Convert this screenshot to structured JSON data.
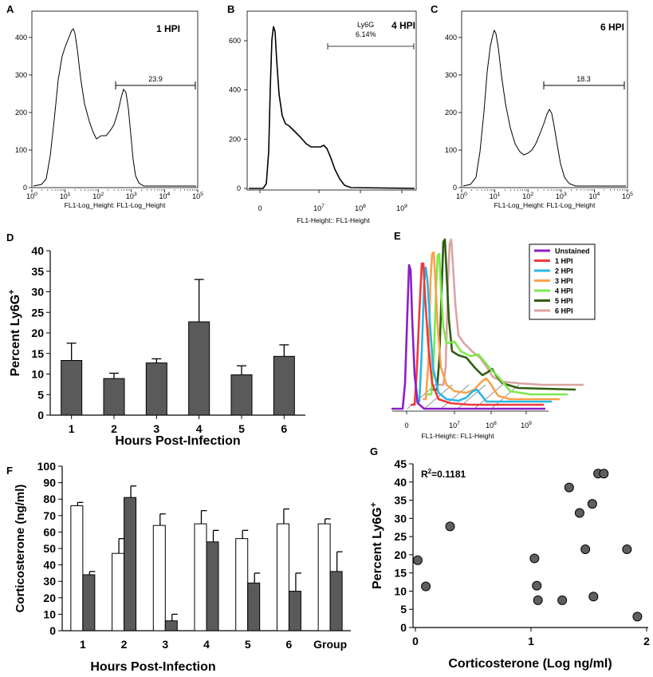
{
  "panels": {
    "A": {
      "letter": "A",
      "title": "1 HPI",
      "gate_value": "23.9",
      "xlabel": "FL1-Log_Height: FL1-Log_Height",
      "x_ticks": [
        "10",
        "10",
        "10",
        "10",
        "10",
        "10"
      ],
      "x_tick_exps": [
        "0",
        "1",
        "2",
        "3",
        "4",
        "5"
      ],
      "y_ticks": [
        "0",
        "100",
        "200",
        "300",
        "400"
      ]
    },
    "B": {
      "letter": "B",
      "title": "4 HPI",
      "gate_label": "Ly6G",
      "gate_value": "6.14%",
      "xlabel": "FL1-Height:: FL1-Height",
      "x_ticks": [
        "0",
        "10",
        "10",
        "10"
      ],
      "x_tick_exps": [
        "",
        "7",
        "8",
        "9"
      ],
      "y_ticks": [
        "0",
        "200",
        "400",
        "600"
      ]
    },
    "C": {
      "letter": "C",
      "title": "6 HPI",
      "gate_value": "18.3",
      "xlabel": "FL1-Log_Height: FL1-Log_Height",
      "x_ticks": [
        "10",
        "10",
        "10",
        "10",
        "10",
        "10"
      ],
      "x_tick_exps": [
        "0",
        "1",
        "2",
        "3",
        "4",
        "5"
      ],
      "y_ticks": [
        "0",
        "100",
        "200",
        "300",
        "400"
      ]
    },
    "D": {
      "letter": "D"
    },
    "E": {
      "letter": "E",
      "xlabel": "FL1-Height:: FL1-Height",
      "x_ticks": [
        "0",
        "10",
        "10",
        "10"
      ],
      "x_tick_exps": [
        "",
        "7",
        "8",
        "9"
      ],
      "legend": [
        {
          "label": "Unstained",
          "color": "#8a1fc7"
        },
        {
          "label": "1 HPI",
          "color": "#ee3b3b"
        },
        {
          "label": "2 HPI",
          "color": "#29b6e8"
        },
        {
          "label": "3 HPI",
          "color": "#f9a24c"
        },
        {
          "label": "4 HPI",
          "color": "#7ee84d"
        },
        {
          "label": "5 HPI",
          "color": "#2f5e12"
        },
        {
          "label": "6 HPI",
          "color": "#d9a5a2"
        }
      ]
    },
    "F": {
      "letter": "F"
    },
    "G": {
      "letter": "G",
      "annotation_main": "R",
      "annotation_sup": "2",
      "annotation_rest": "=0.1181"
    }
  },
  "chart_data": [
    {
      "id": "D",
      "type": "bar",
      "categories": [
        "1",
        "2",
        "3",
        "4",
        "5",
        "6"
      ],
      "values": [
        13.3,
        8.9,
        12.7,
        22.7,
        9.8,
        14.3
      ],
      "errors": [
        4.2,
        1.3,
        1.0,
        10.3,
        2.2,
        2.8
      ],
      "ylabel_main": "Percent Ly6G",
      "ylabel_sup": "+",
      "xlabel": "Hours Post-Infection",
      "ylim": [
        0,
        40
      ],
      "y_ticks": [
        "0",
        "5",
        "10",
        "15",
        "20",
        "25",
        "30",
        "35",
        "40"
      ],
      "bar_color": "#5a5a5a"
    },
    {
      "id": "F",
      "type": "bar",
      "categories": [
        "1",
        "2",
        "3",
        "4",
        "5",
        "6",
        "Group"
      ],
      "series": [
        {
          "name": "white",
          "values": [
            76,
            47,
            64,
            65,
            56,
            65,
            65
          ],
          "errors": [
            2,
            9,
            7,
            8,
            5,
            9,
            3
          ],
          "color": "#ffffff"
        },
        {
          "name": "gray",
          "values": [
            34,
            81,
            6,
            54,
            29,
            24,
            36
          ],
          "errors": [
            2,
            7,
            4,
            7,
            6,
            11,
            12
          ],
          "color": "#5a5a5a"
        }
      ],
      "ylabel": "Corticosterone (ng/ml)",
      "xlabel": "Hours Post-Infection",
      "ylim": [
        0,
        100
      ],
      "y_ticks": [
        "0",
        "10",
        "20",
        "30",
        "40",
        "50",
        "60",
        "70",
        "80",
        "90",
        "100"
      ]
    },
    {
      "id": "G",
      "type": "scatter",
      "x": [
        0.02,
        0.09,
        0.3,
        1.03,
        1.05,
        1.06,
        1.27,
        1.33,
        1.42,
        1.47,
        1.53,
        1.54,
        1.58,
        1.63,
        1.83,
        1.92
      ],
      "y": [
        18.5,
        11.3,
        27.8,
        19.0,
        11.5,
        7.5,
        7.5,
        38.5,
        31.5,
        21.5,
        34.0,
        8.5,
        42.3,
        42.3,
        21.5,
        3.0
      ],
      "xlabel": "Corticosterone (Log ng/ml)",
      "ylabel_main": "Percent Ly6G",
      "ylabel_sup": "+",
      "xlim": [
        0,
        2
      ],
      "ylim": [
        0,
        45
      ],
      "x_ticks": [
        "0",
        "1",
        "2"
      ],
      "y_ticks": [
        "0",
        "5",
        "10",
        "15",
        "20",
        "25",
        "30",
        "35",
        "40",
        "45"
      ],
      "point_color": "#5f5f5f"
    }
  ]
}
